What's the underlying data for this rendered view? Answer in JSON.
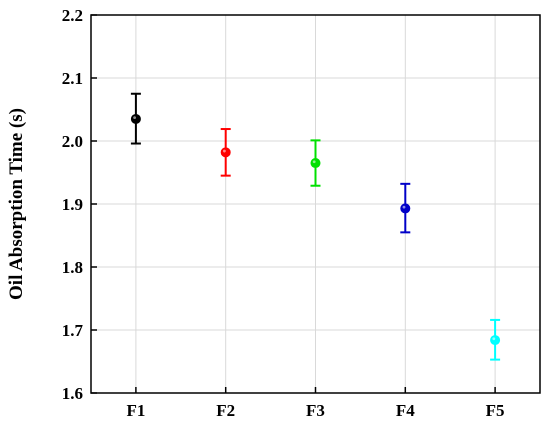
{
  "chart_data": {
    "type": "scatter",
    "ylabel": "Oil Absorption Time (s)",
    "xlabel": "",
    "categories": [
      "F1",
      "F2",
      "F3",
      "F4",
      "F5"
    ],
    "values": [
      2.035,
      1.982,
      1.965,
      1.893,
      1.684
    ],
    "errors_low": [
      1.996,
      1.945,
      1.929,
      1.855,
      1.653
    ],
    "errors_high": [
      2.075,
      2.019,
      2.001,
      1.932,
      1.716
    ],
    "colors": [
      "#000000",
      "#ff0000",
      "#00e000",
      "#0000c8",
      "#00ffff"
    ],
    "ylim": [
      1.6,
      2.2
    ],
    "yticks": [
      "1.6",
      "1.7",
      "1.8",
      "1.9",
      "2.0",
      "2.1",
      "2.2"
    ],
    "grid": true,
    "legend": "none"
  }
}
